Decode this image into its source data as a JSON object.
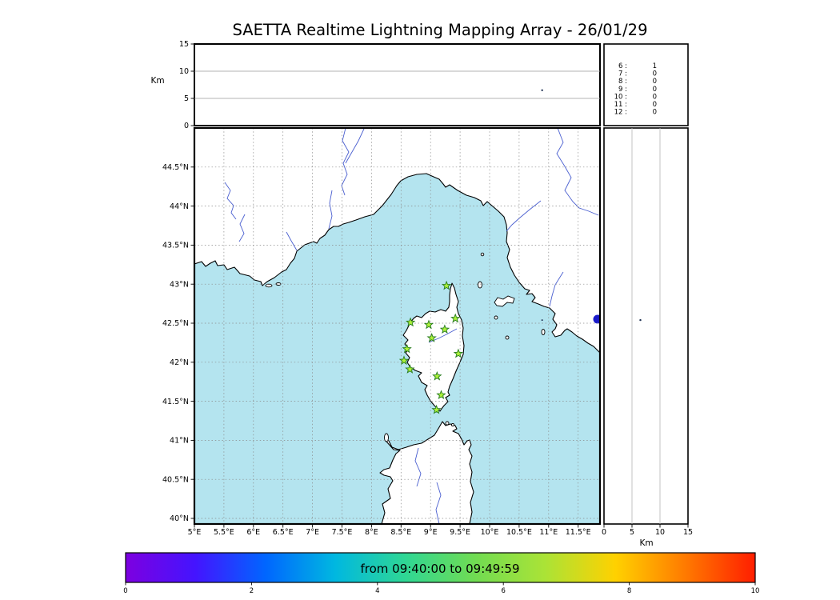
{
  "title": "SAETTA Realtime Lightning Mapping Array - 26/01/29",
  "altitude_panel": {
    "axis_label": "Km",
    "ticks": [
      0,
      5,
      10,
      15
    ],
    "tick_labels": [
      "0",
      "5",
      "10",
      "15"
    ],
    "gridlines": [
      5,
      10
    ]
  },
  "histogram_panel": {
    "rows": [
      {
        "bin": "6",
        "count": "1"
      },
      {
        "bin": "7",
        "count": "0"
      },
      {
        "bin": "8",
        "count": "0"
      },
      {
        "bin": "9",
        "count": "0"
      },
      {
        "bin": "10",
        "count": "0"
      },
      {
        "bin": "11",
        "count": "0"
      },
      {
        "bin": "12",
        "count": "0"
      }
    ],
    "highlight_color": "#e8534e",
    "text_color": "#222222"
  },
  "map": {
    "lat_ticks": [
      {
        "v": 44.5,
        "label": "44.5°N"
      },
      {
        "v": 44,
        "label": "44°N"
      },
      {
        "v": 43.5,
        "label": "43.5°N"
      },
      {
        "v": 43,
        "label": "43°N"
      },
      {
        "v": 42.5,
        "label": "42.5°N"
      },
      {
        "v": 42,
        "label": "42°N"
      },
      {
        "v": 41.5,
        "label": "41.5°N"
      },
      {
        "v": 41,
        "label": "41°N"
      },
      {
        "v": 40.5,
        "label": "40.5°N"
      },
      {
        "v": 40,
        "label": "40°N"
      }
    ],
    "lon_ticks": [
      {
        "v": 5,
        "label": "5°E"
      },
      {
        "v": 5.5,
        "label": "5.5°E"
      },
      {
        "v": 6,
        "label": "6°E"
      },
      {
        "v": 6.5,
        "label": "6.5°E"
      },
      {
        "v": 7,
        "label": "7°E"
      },
      {
        "v": 7.5,
        "label": "7.5°E"
      },
      {
        "v": 8,
        "label": "8°E"
      },
      {
        "v": 8.5,
        "label": "8.5°E"
      },
      {
        "v": 9,
        "label": "9°E"
      },
      {
        "v": 9.5,
        "label": "9.5°E"
      },
      {
        "v": 10,
        "label": "10°E"
      },
      {
        "v": 10.5,
        "label": "10.5°E"
      },
      {
        "v": 11,
        "label": "11°E"
      },
      {
        "v": 11.5,
        "label": "11.5°E"
      }
    ],
    "sea_color": "#b4e4ef",
    "land_color": "#ffffff",
    "coast_color": "#000000",
    "river_color": "#4a5fd0",
    "grid_color": "#8a8a8a",
    "lake_color": "#1a1acb"
  },
  "right_panel": {
    "axis_label": "Km",
    "ticks": [
      0,
      5,
      10,
      15
    ],
    "tick_labels": [
      "0",
      "5",
      "10",
      "15"
    ],
    "gridlines": [
      5,
      10
    ]
  },
  "colorbar": {
    "label": "from 09:40:00 to 09:49:59",
    "ticks": [
      0,
      2,
      4,
      6,
      8,
      10
    ],
    "tick_labels": [
      "0",
      "2",
      "4",
      "6",
      "8",
      "10"
    ],
    "colors": [
      "#7d00e0",
      "#4414ff",
      "#0066ff",
      "#00b8e0",
      "#2fd794",
      "#71dc52",
      "#abe336",
      "#ffd100",
      "#ff7a00",
      "#ff1e00"
    ]
  },
  "chart_data": {
    "type": "scatter",
    "title": "SAETTA Realtime Lightning Mapping Array - 26/01/29",
    "map_extent": {
      "lon_min": 5.0,
      "lon_max": 11.87,
      "lat_min": 39.93,
      "lat_max": 45.0
    },
    "altitude_range_km": [
      0,
      15
    ],
    "colorbar_range": [
      0,
      10
    ],
    "time_window": {
      "from": "09:40:00",
      "to": "09:49:59"
    },
    "stations": [
      {
        "lon": 9.27,
        "lat": 42.98
      },
      {
        "lon": 8.66,
        "lat": 42.51
      },
      {
        "lon": 8.97,
        "lat": 42.48
      },
      {
        "lon": 9.24,
        "lat": 42.42
      },
      {
        "lon": 9.42,
        "lat": 42.56
      },
      {
        "lon": 9.02,
        "lat": 42.31
      },
      {
        "lon": 8.6,
        "lat": 42.17
      },
      {
        "lon": 9.47,
        "lat": 42.11
      },
      {
        "lon": 8.55,
        "lat": 42.02
      },
      {
        "lon": 8.65,
        "lat": 41.91
      },
      {
        "lon": 9.11,
        "lat": 41.82
      },
      {
        "lon": 9.18,
        "lat": 41.58
      },
      {
        "lon": 9.1,
        "lat": 41.39
      }
    ],
    "sources": [
      {
        "lon": 10.89,
        "lat": 42.54,
        "alt_km": 6.5
      }
    ],
    "altitude_histogram": {
      "bins_km": [
        6,
        7,
        8,
        9,
        10,
        11,
        12
      ],
      "counts": [
        1,
        0,
        0,
        0,
        0,
        0,
        0
      ]
    },
    "star_fill": "#adf23a",
    "star_edge": "#267a1e",
    "source_color": "#223355"
  }
}
